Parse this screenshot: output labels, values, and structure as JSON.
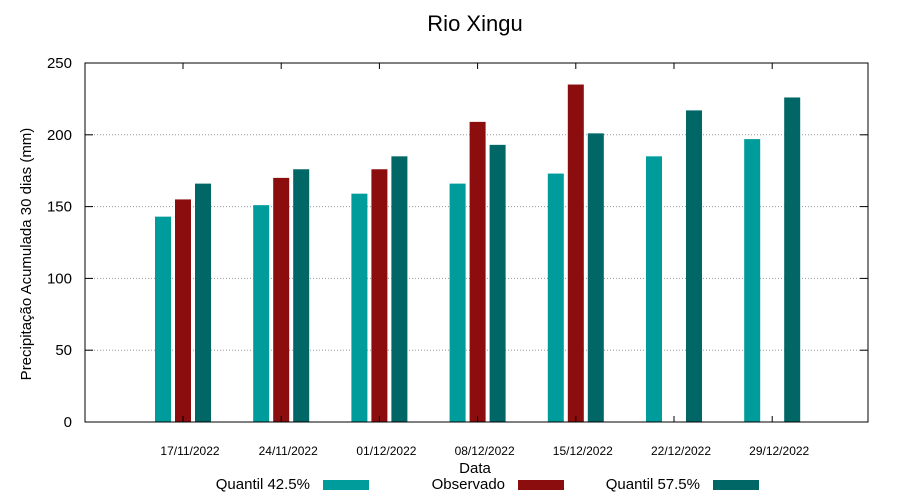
{
  "chart_data": {
    "type": "bar",
    "title": "Rio Xingu",
    "xlabel": "Data",
    "ylabel": "Precipitação Acumulada 30 dias (mm)",
    "ylim": [
      0,
      250
    ],
    "yticks": [
      "0",
      "50",
      "100",
      "150",
      "200",
      "250"
    ],
    "grid": true,
    "legend_position": "bottom",
    "categories": [
      "17/11/2022",
      "24/11/2022",
      "01/12/2022",
      "08/12/2022",
      "15/12/2022",
      "22/12/2022",
      "29/12/2022"
    ],
    "series": [
      {
        "name": "Quantil 42.5%",
        "color": "#009b9b",
        "values": [
          143,
          151,
          159,
          166,
          173,
          185,
          197
        ]
      },
      {
        "name": "Observado",
        "color": "#8b0d0d",
        "values": [
          155,
          170,
          176,
          209,
          235,
          null,
          null
        ]
      },
      {
        "name": "Quantil 57.5%",
        "color": "#006666",
        "values": [
          166,
          176,
          185,
          193,
          201,
          217,
          226
        ]
      }
    ]
  }
}
